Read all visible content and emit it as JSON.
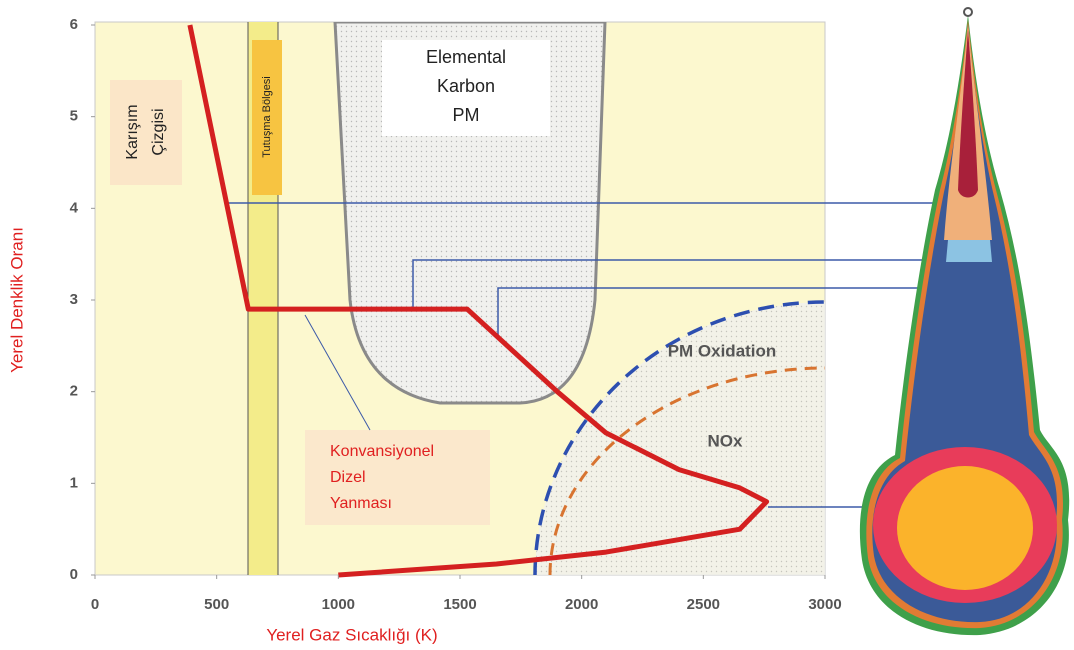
{
  "chart_data": {
    "type": "line",
    "xlabel": "Yerel Gaz Sıcaklığı (K)",
    "ylabel": "Yerel Denklik Oranı",
    "xlim": [
      0,
      3000
    ],
    "xticks": [
      0,
      500,
      1000,
      1500,
      2000,
      2500,
      3000
    ],
    "ylim": [
      0,
      6
    ],
    "yticks": [
      0,
      1,
      2,
      3,
      4,
      5,
      6
    ],
    "series": [
      {
        "color": "#d42020",
        "x": [
          390,
          630,
          1530,
          1900,
          2100,
          2400,
          2650,
          2760,
          2650,
          2100,
          1650,
          1000
        ],
        "values": [
          6,
          2.9,
          2.9,
          2.0,
          1.55,
          1.15,
          0.95,
          0.8,
          0.5,
          0.25,
          0.12,
          0
        ]
      }
    ],
    "annotations": {
      "soot": [
        "Elemental",
        "Karbon",
        "PM"
      ],
      "mixing": [
        "Karışım",
        "Çizgisi"
      ],
      "ignition": "Tutuşma Bölgesi",
      "pm_oxidation": "PM Oxidation",
      "nox": "NOx",
      "conventional": [
        "Konvansiyonel",
        "Dizel",
        "Yanması"
      ]
    }
  }
}
